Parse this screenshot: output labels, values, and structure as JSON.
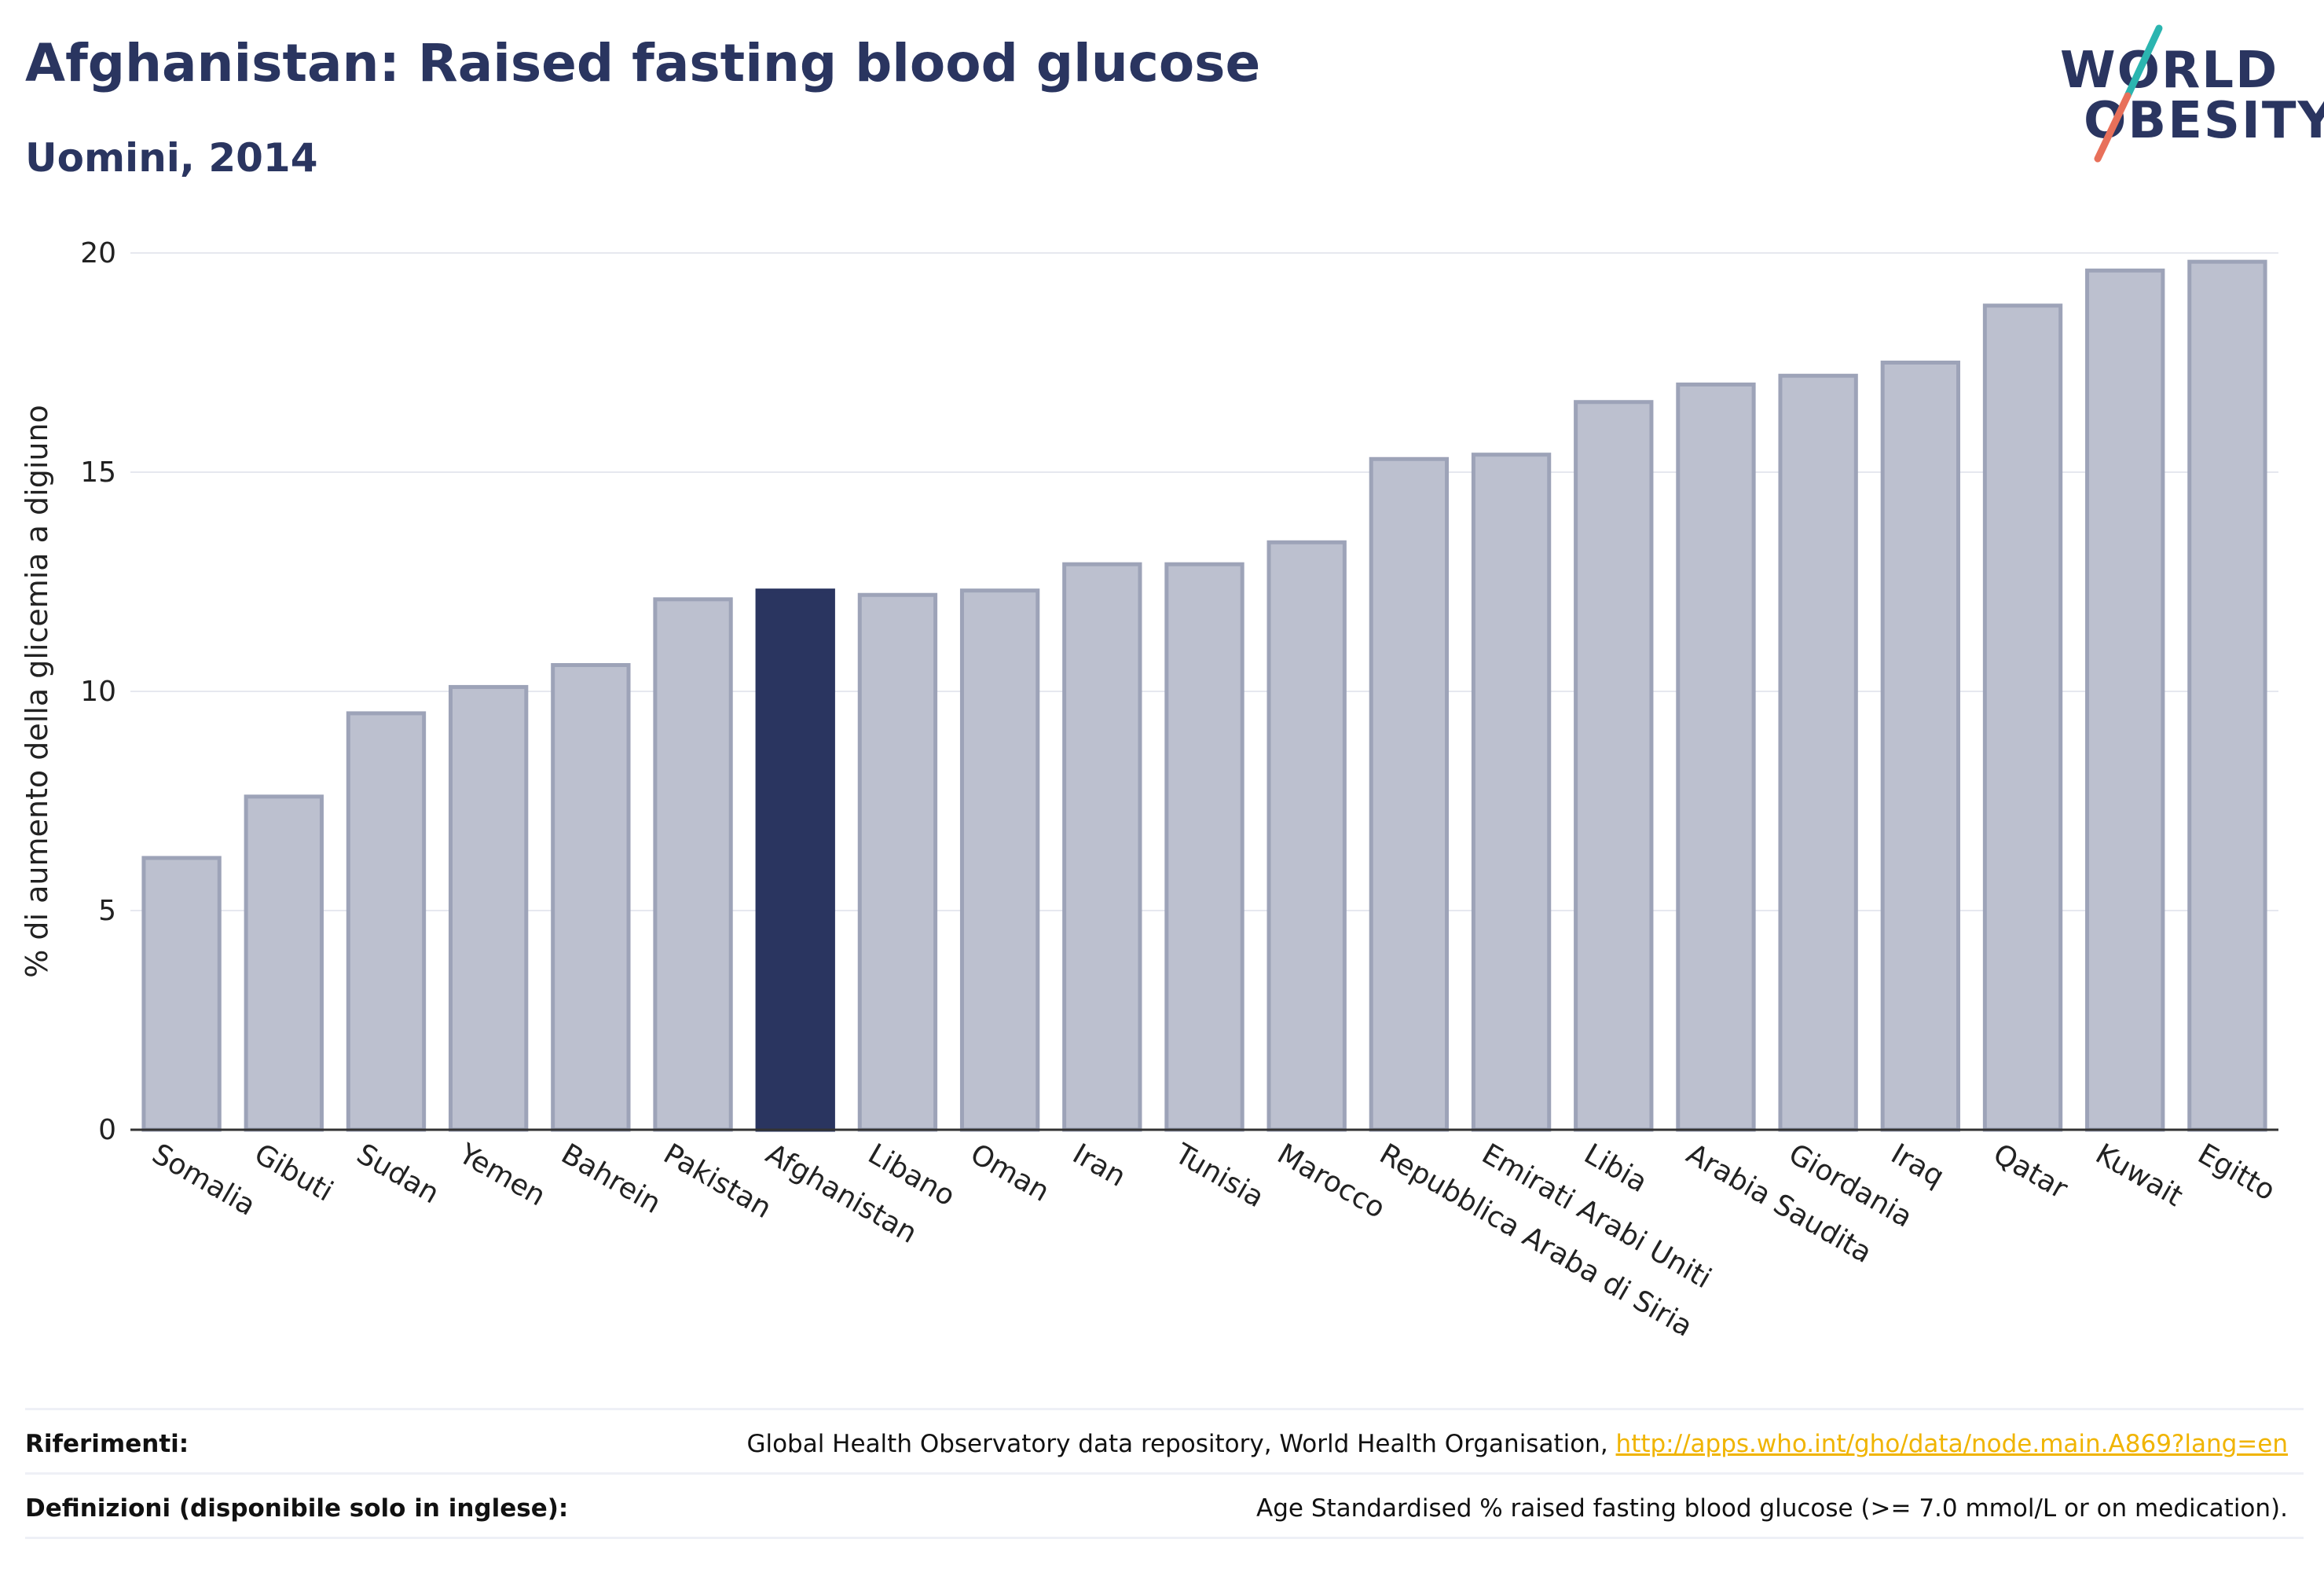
{
  "header": {
    "title": "Afghanistan: Raised fasting blood glucose",
    "subtitle": "Uomini, 2014"
  },
  "logo": {
    "line1": "WORLD",
    "line2": "OBESITY",
    "colors": {
      "text": "#2a3560",
      "slash_top": "#2bb5b0",
      "slash_bottom": "#e8705a"
    }
  },
  "chart_data": {
    "type": "bar",
    "ylabel": "% di aumento della glicemia a digiuno",
    "xlabel": "",
    "ylim": [
      0,
      20
    ],
    "yticks": [
      0,
      5,
      10,
      15,
      20
    ],
    "grid": true,
    "highlight": "Afghanistan",
    "colors": {
      "bar": "#bcc0cf",
      "bar_edge": "#9da3b8",
      "highlight": "#2a3560"
    },
    "categories": [
      "Somalia",
      "Gibuti",
      "Sudan",
      "Yemen",
      "Bahrein",
      "Pakistan",
      "Afghanistan",
      "Libano",
      "Oman",
      "Iran",
      "Tunisia",
      "Marocco",
      "Repubblica Araba di Siria",
      "Emirati Arabi Uniti",
      "Libia",
      "Arabia Saudita",
      "Giordania",
      "Iraq",
      "Qatar",
      "Kuwait",
      "Egitto"
    ],
    "values": [
      6.2,
      7.6,
      9.5,
      10.1,
      10.6,
      12.1,
      12.3,
      12.2,
      12.3,
      12.9,
      12.9,
      13.4,
      15.3,
      15.4,
      16.6,
      17.0,
      17.2,
      17.5,
      18.8,
      19.6,
      19.8
    ]
  },
  "footer": {
    "references_label": "Riferimenti:",
    "references_text": "Global Health Observatory data repository, World Health Organisation, ",
    "references_link": "http://apps.who.int/gho/data/node.main.A869?lang=en",
    "definitions_label": "Definizioni (disponibile solo in inglese):",
    "definitions_text": "Age Standardised % raised fasting blood glucose (>= 7.0 mmol/L or on medication)."
  }
}
